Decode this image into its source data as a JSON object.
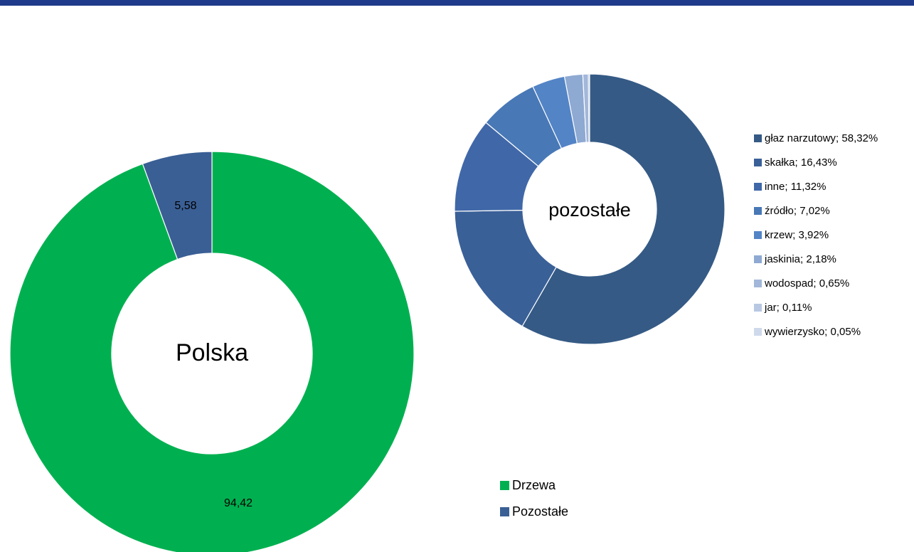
{
  "colors": {
    "top_bar": "#1f3a8a",
    "drzewa": "#00b050",
    "pozostale": "#3a5f95"
  },
  "chart_data": [
    {
      "type": "pie",
      "donut": true,
      "center_label": "Polska",
      "categories": [
        "Drzewa",
        "Pozostałe"
      ],
      "values": [
        94.42,
        5.58
      ],
      "data_labels": [
        "94,42",
        "5,58"
      ],
      "colors": [
        "#00b050",
        "#3a5f95"
      ],
      "legend": [
        "Drzewa",
        "Pozostałe"
      ],
      "legend_position": "bottom-right"
    },
    {
      "type": "pie",
      "donut": true,
      "center_label": "pozostałe",
      "categories": [
        "głaz narzutowy",
        "skałka",
        "inne",
        "źródło",
        "krzew",
        "jaskinia",
        "wodospad",
        "jar",
        "wywierzysko"
      ],
      "values": [
        58.32,
        16.43,
        11.32,
        7.02,
        3.92,
        2.18,
        0.65,
        0.11,
        0.05
      ],
      "legend": [
        "głaz narzutowy; 58,32%",
        "skałka; 16,43%",
        "inne; 11,32%",
        "źródło; 7,02%",
        "krzew; 3,92%",
        "jaskinia; 2,18%",
        "wodospad; 0,65%",
        "jar; 0,11%",
        "wywierzysko; 0,05%"
      ],
      "colors": [
        "#355a85",
        "#3a6098",
        "#4068a8",
        "#4878b6",
        "#5384c6",
        "#8ea9d2",
        "#a2b7d9",
        "#b8c8e2",
        "#cfd9ec"
      ],
      "legend_position": "right"
    }
  ]
}
